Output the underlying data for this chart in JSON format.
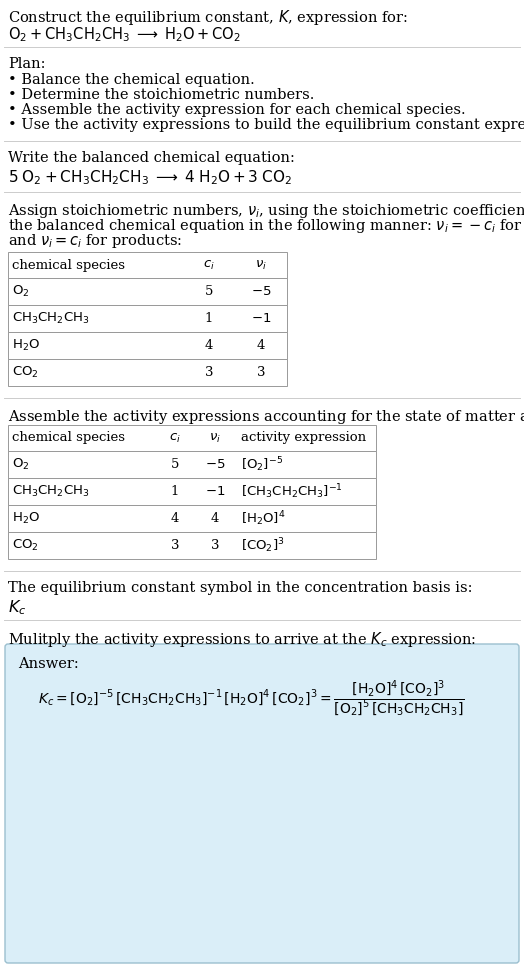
{
  "title_line1": "Construct the equilibrium constant, $K$, expression for:",
  "title_line2": "$\\mathrm{O_2 + CH_3CH_2CH_3 \\;\\longrightarrow\\; H_2O + CO_2}$",
  "plan_header": "Plan:",
  "plan_bullets": [
    "• Balance the chemical equation.",
    "• Determine the stoichiometric numbers.",
    "• Assemble the activity expression for each chemical species.",
    "• Use the activity expressions to build the equilibrium constant expression."
  ],
  "balanced_header": "Write the balanced chemical equation:",
  "balanced_eq": "$\\mathrm{5\\;O_2 + CH_3CH_2CH_3 \\;\\longrightarrow\\; 4\\;H_2O + 3\\;CO_2}$",
  "stoich_header_1": "Assign stoichiometric numbers, $\\nu_i$, using the stoichiometric coefficients, $c_i$, from",
  "stoich_header_2": "the balanced chemical equation in the following manner: $\\nu_i = -c_i$ for reactants",
  "stoich_header_3": "and $\\nu_i = c_i$ for products:",
  "table1_headers": [
    "chemical species",
    "$c_i$",
    "$\\nu_i$"
  ],
  "table1_rows": [
    [
      "$\\mathrm{O_2}$",
      "5",
      "$-5$"
    ],
    [
      "$\\mathrm{CH_3CH_2CH_3}$",
      "1",
      "$-1$"
    ],
    [
      "$\\mathrm{H_2O}$",
      "4",
      "4"
    ],
    [
      "$\\mathrm{CO_2}$",
      "3",
      "3"
    ]
  ],
  "assemble_header": "Assemble the activity expressions accounting for the state of matter and $\\nu_i$:",
  "table2_headers": [
    "chemical species",
    "$c_i$",
    "$\\nu_i$",
    "activity expression"
  ],
  "table2_rows": [
    [
      "$\\mathrm{O_2}$",
      "5",
      "$-5$",
      "$[\\mathrm{O_2}]^{-5}$"
    ],
    [
      "$\\mathrm{CH_3CH_2CH_3}$",
      "1",
      "$-1$",
      "$[\\mathrm{CH_3CH_2CH_3}]^{-1}$"
    ],
    [
      "$\\mathrm{H_2O}$",
      "4",
      "4",
      "$[\\mathrm{H_2O}]^{4}$"
    ],
    [
      "$\\mathrm{CO_2}$",
      "3",
      "3",
      "$[\\mathrm{CO_2}]^{3}$"
    ]
  ],
  "kc_text": "The equilibrium constant symbol in the concentration basis is:",
  "kc_symbol": "$K_c$",
  "multiply_text": "Mulitply the activity expressions to arrive at the $K_c$ expression:",
  "answer_label": "Answer:",
  "answer_kc_full": "$K_c = [\\mathrm{O_2}]^{-5}\\,[\\mathrm{CH_3CH_2CH_3}]^{-1}\\,[\\mathrm{H_2O}]^{4}\\,[\\mathrm{CO_2}]^{3} = \\dfrac{[\\mathrm{H_2O}]^{4}\\,[\\mathrm{CO_2}]^{3}}{[\\mathrm{O_2}]^{5}\\,[\\mathrm{CH_3CH_2CH_3}]}$",
  "bg_color": "#ffffff",
  "table_border_color": "#999999",
  "answer_box_facecolor": "#daeef8",
  "answer_box_edgecolor": "#9bbfcf",
  "text_color": "#000000",
  "separator_color": "#cccccc"
}
